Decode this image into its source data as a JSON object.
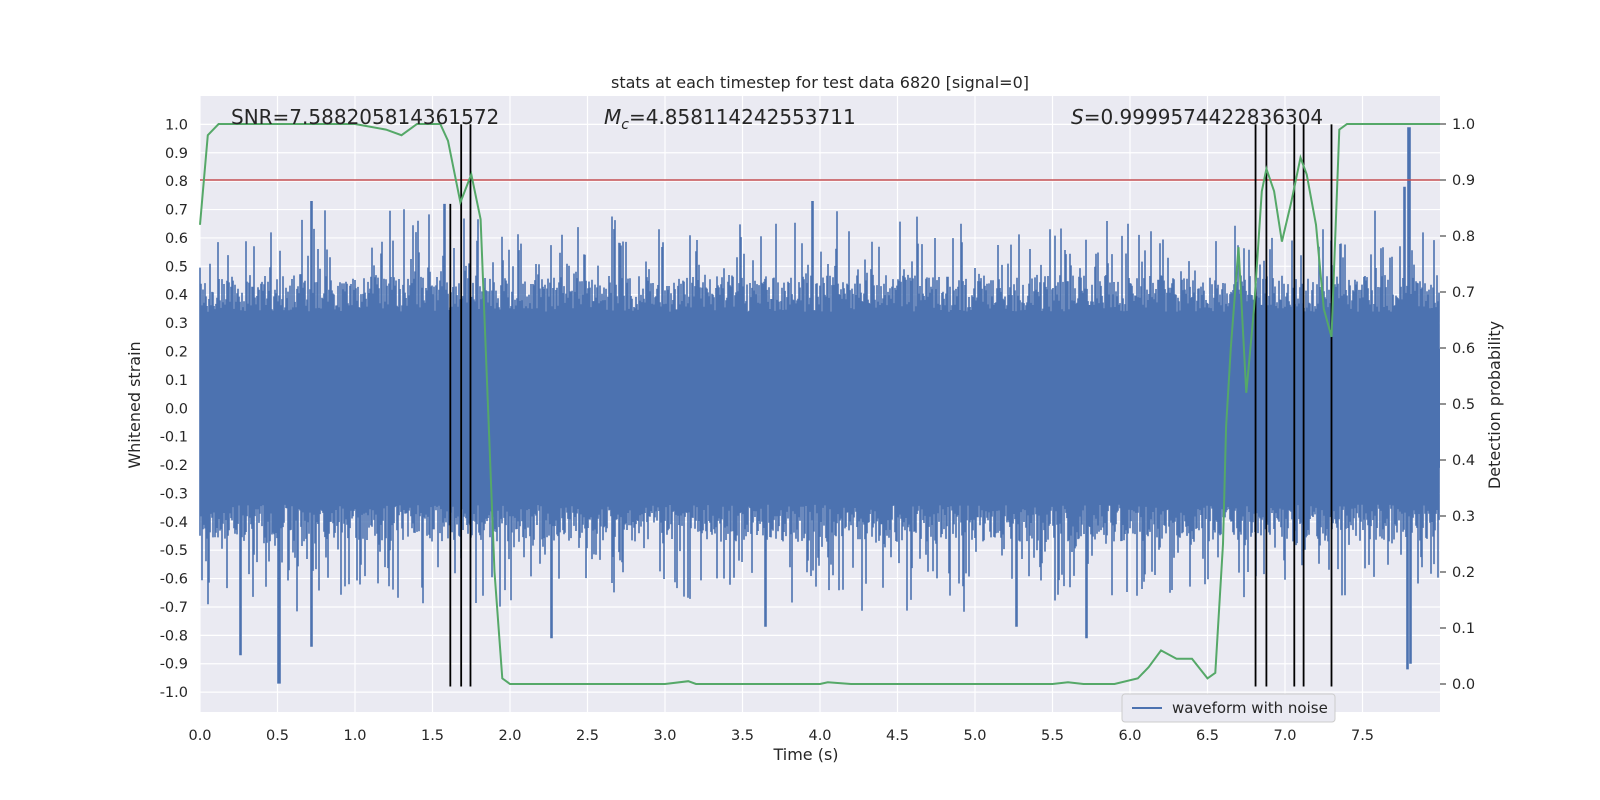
{
  "chart_data": {
    "type": "line",
    "title": "stats at each timestep for test data 6820 [signal=0]",
    "xlabel": "Time (s)",
    "ylabel_left": "Whitened strain",
    "ylabel_right": "Detection probability",
    "xlim": [
      0,
      8.0
    ],
    "ylim_left": [
      -1.07,
      1.1
    ],
    "ylim_right": [
      -0.05,
      1.05
    ],
    "x_ticks": [
      "0.0",
      "0.5",
      "1.0",
      "1.5",
      "2.0",
      "2.5",
      "3.0",
      "3.5",
      "4.0",
      "4.5",
      "5.0",
      "5.5",
      "6.0",
      "6.5",
      "7.0",
      "7.5"
    ],
    "x_tick_values": [
      0,
      0.5,
      1,
      1.5,
      2,
      2.5,
      3,
      3.5,
      4,
      4.5,
      5,
      5.5,
      6,
      6.5,
      7,
      7.5
    ],
    "y_ticks_left": [
      "1.0",
      "0.9",
      "0.8",
      "0.7",
      "0.6",
      "0.5",
      "0.4",
      "0.3",
      "0.2",
      "0.1",
      "0.0",
      "-0.1",
      "-0.2",
      "-0.3",
      "-0.4",
      "-0.5",
      "-0.6",
      "-0.7",
      "-0.8",
      "-0.9",
      "-1.0"
    ],
    "y_tick_values_left": [
      1.0,
      0.9,
      0.8,
      0.7,
      0.6,
      0.5,
      0.4,
      0.3,
      0.2,
      0.1,
      0.0,
      -0.1,
      -0.2,
      -0.3,
      -0.4,
      -0.5,
      -0.6,
      -0.7,
      -0.8,
      -0.9,
      -1.0
    ],
    "y_ticks_right": [
      "1.0",
      "0.9",
      "0.8",
      "0.7",
      "0.6",
      "0.5",
      "0.4",
      "0.3",
      "0.2",
      "0.1",
      "0.0"
    ],
    "y_tick_values_right": [
      1.0,
      0.9,
      0.8,
      0.7,
      0.6,
      0.5,
      0.4,
      0.3,
      0.2,
      0.1,
      0.0
    ],
    "annotations": {
      "snr": "SNR=7.588205814361572",
      "mc_symbol": "M",
      "mc_subscript": "c",
      "mc_value": "=4.858114242553711",
      "s_symbol": "S",
      "s_value": "=0.9999574422836304"
    },
    "legend": [
      {
        "label": "waveform with noise",
        "color": "#4c72b0"
      }
    ],
    "threshold_right": 0.9,
    "threshold_color": "#c44e52",
    "waveform_color": "#4c72b0",
    "probability_color": "#55a868",
    "vline_color": "#000000",
    "vlines": [
      {
        "x": 1.615,
        "y_left_min": -0.98,
        "y_left_max": 0.72
      },
      {
        "x": 1.685,
        "y_left_min": -0.98,
        "y_left_max": 1.0
      },
      {
        "x": 1.745,
        "y_left_min": -0.98,
        "y_left_max": 1.0
      },
      {
        "x": 6.81,
        "y_left_min": -0.98,
        "y_left_max": 1.0
      },
      {
        "x": 6.88,
        "y_left_min": -0.98,
        "y_left_max": 1.0
      },
      {
        "x": 7.06,
        "y_left_min": -0.98,
        "y_left_max": 1.0
      },
      {
        "x": 7.12,
        "y_left_min": -0.98,
        "y_left_max": 1.0
      },
      {
        "x": 7.3,
        "y_left_min": -0.98,
        "y_left_max": 1.0
      }
    ],
    "waveform_envelope": {
      "core_abs": 0.21,
      "typical_max": 0.45,
      "seed": 6820,
      "spikes": [
        {
          "x": 0.51,
          "y": -0.97
        },
        {
          "x": 0.72,
          "y": -0.84
        },
        {
          "x": 0.26,
          "y": -0.87
        },
        {
          "x": 0.72,
          "y": 0.73
        },
        {
          "x": 1.58,
          "y": 0.72
        },
        {
          "x": 2.27,
          "y": -0.81
        },
        {
          "x": 3.65,
          "y": -0.77
        },
        {
          "x": 3.95,
          "y": 0.73
        },
        {
          "x": 5.27,
          "y": -0.77
        },
        {
          "x": 5.72,
          "y": -0.81
        },
        {
          "x": 7.8,
          "y": 0.99
        },
        {
          "x": 7.81,
          "y": -0.9
        },
        {
          "x": 7.79,
          "y": -0.92
        },
        {
          "x": 7.77,
          "y": 0.78
        }
      ]
    },
    "probability_series": {
      "x": [
        0.0,
        0.05,
        0.12,
        0.2,
        0.5,
        1.0,
        1.2,
        1.3,
        1.4,
        1.55,
        1.6,
        1.68,
        1.75,
        1.81,
        1.85,
        1.9,
        1.95,
        2.0,
        2.2,
        2.4,
        2.6,
        2.8,
        3.0,
        3.15,
        3.2,
        3.4,
        3.6,
        3.8,
        4.0,
        4.05,
        4.2,
        4.5,
        4.8,
        5.0,
        5.2,
        5.5,
        5.6,
        5.7,
        5.9,
        6.05,
        6.12,
        6.2,
        6.3,
        6.4,
        6.5,
        6.55,
        6.6,
        6.62,
        6.65,
        6.7,
        6.75,
        6.8,
        6.85,
        6.88,
        6.93,
        6.98,
        7.04,
        7.1,
        7.14,
        7.2,
        7.25,
        7.3,
        7.35,
        7.4,
        7.45,
        7.6,
        8.0
      ],
      "y": [
        0.82,
        0.98,
        1.0,
        1.0,
        1.0,
        1.0,
        0.99,
        0.98,
        1.0,
        1.0,
        0.97,
        0.86,
        0.91,
        0.83,
        0.55,
        0.2,
        0.01,
        0.0,
        0.0,
        0.0,
        0.0,
        0.0,
        0.0,
        0.005,
        0.0,
        0.0,
        0.0,
        0.0,
        0.0,
        0.003,
        0.0,
        0.0,
        0.0,
        0.0,
        0.0,
        0.0,
        0.003,
        0.0,
        0.0,
        0.01,
        0.03,
        0.06,
        0.045,
        0.045,
        0.01,
        0.02,
        0.25,
        0.46,
        0.6,
        0.78,
        0.52,
        0.67,
        0.88,
        0.92,
        0.88,
        0.79,
        0.86,
        0.94,
        0.91,
        0.82,
        0.67,
        0.62,
        0.99,
        1.0,
        1.0,
        1.0,
        1.0
      ]
    }
  }
}
